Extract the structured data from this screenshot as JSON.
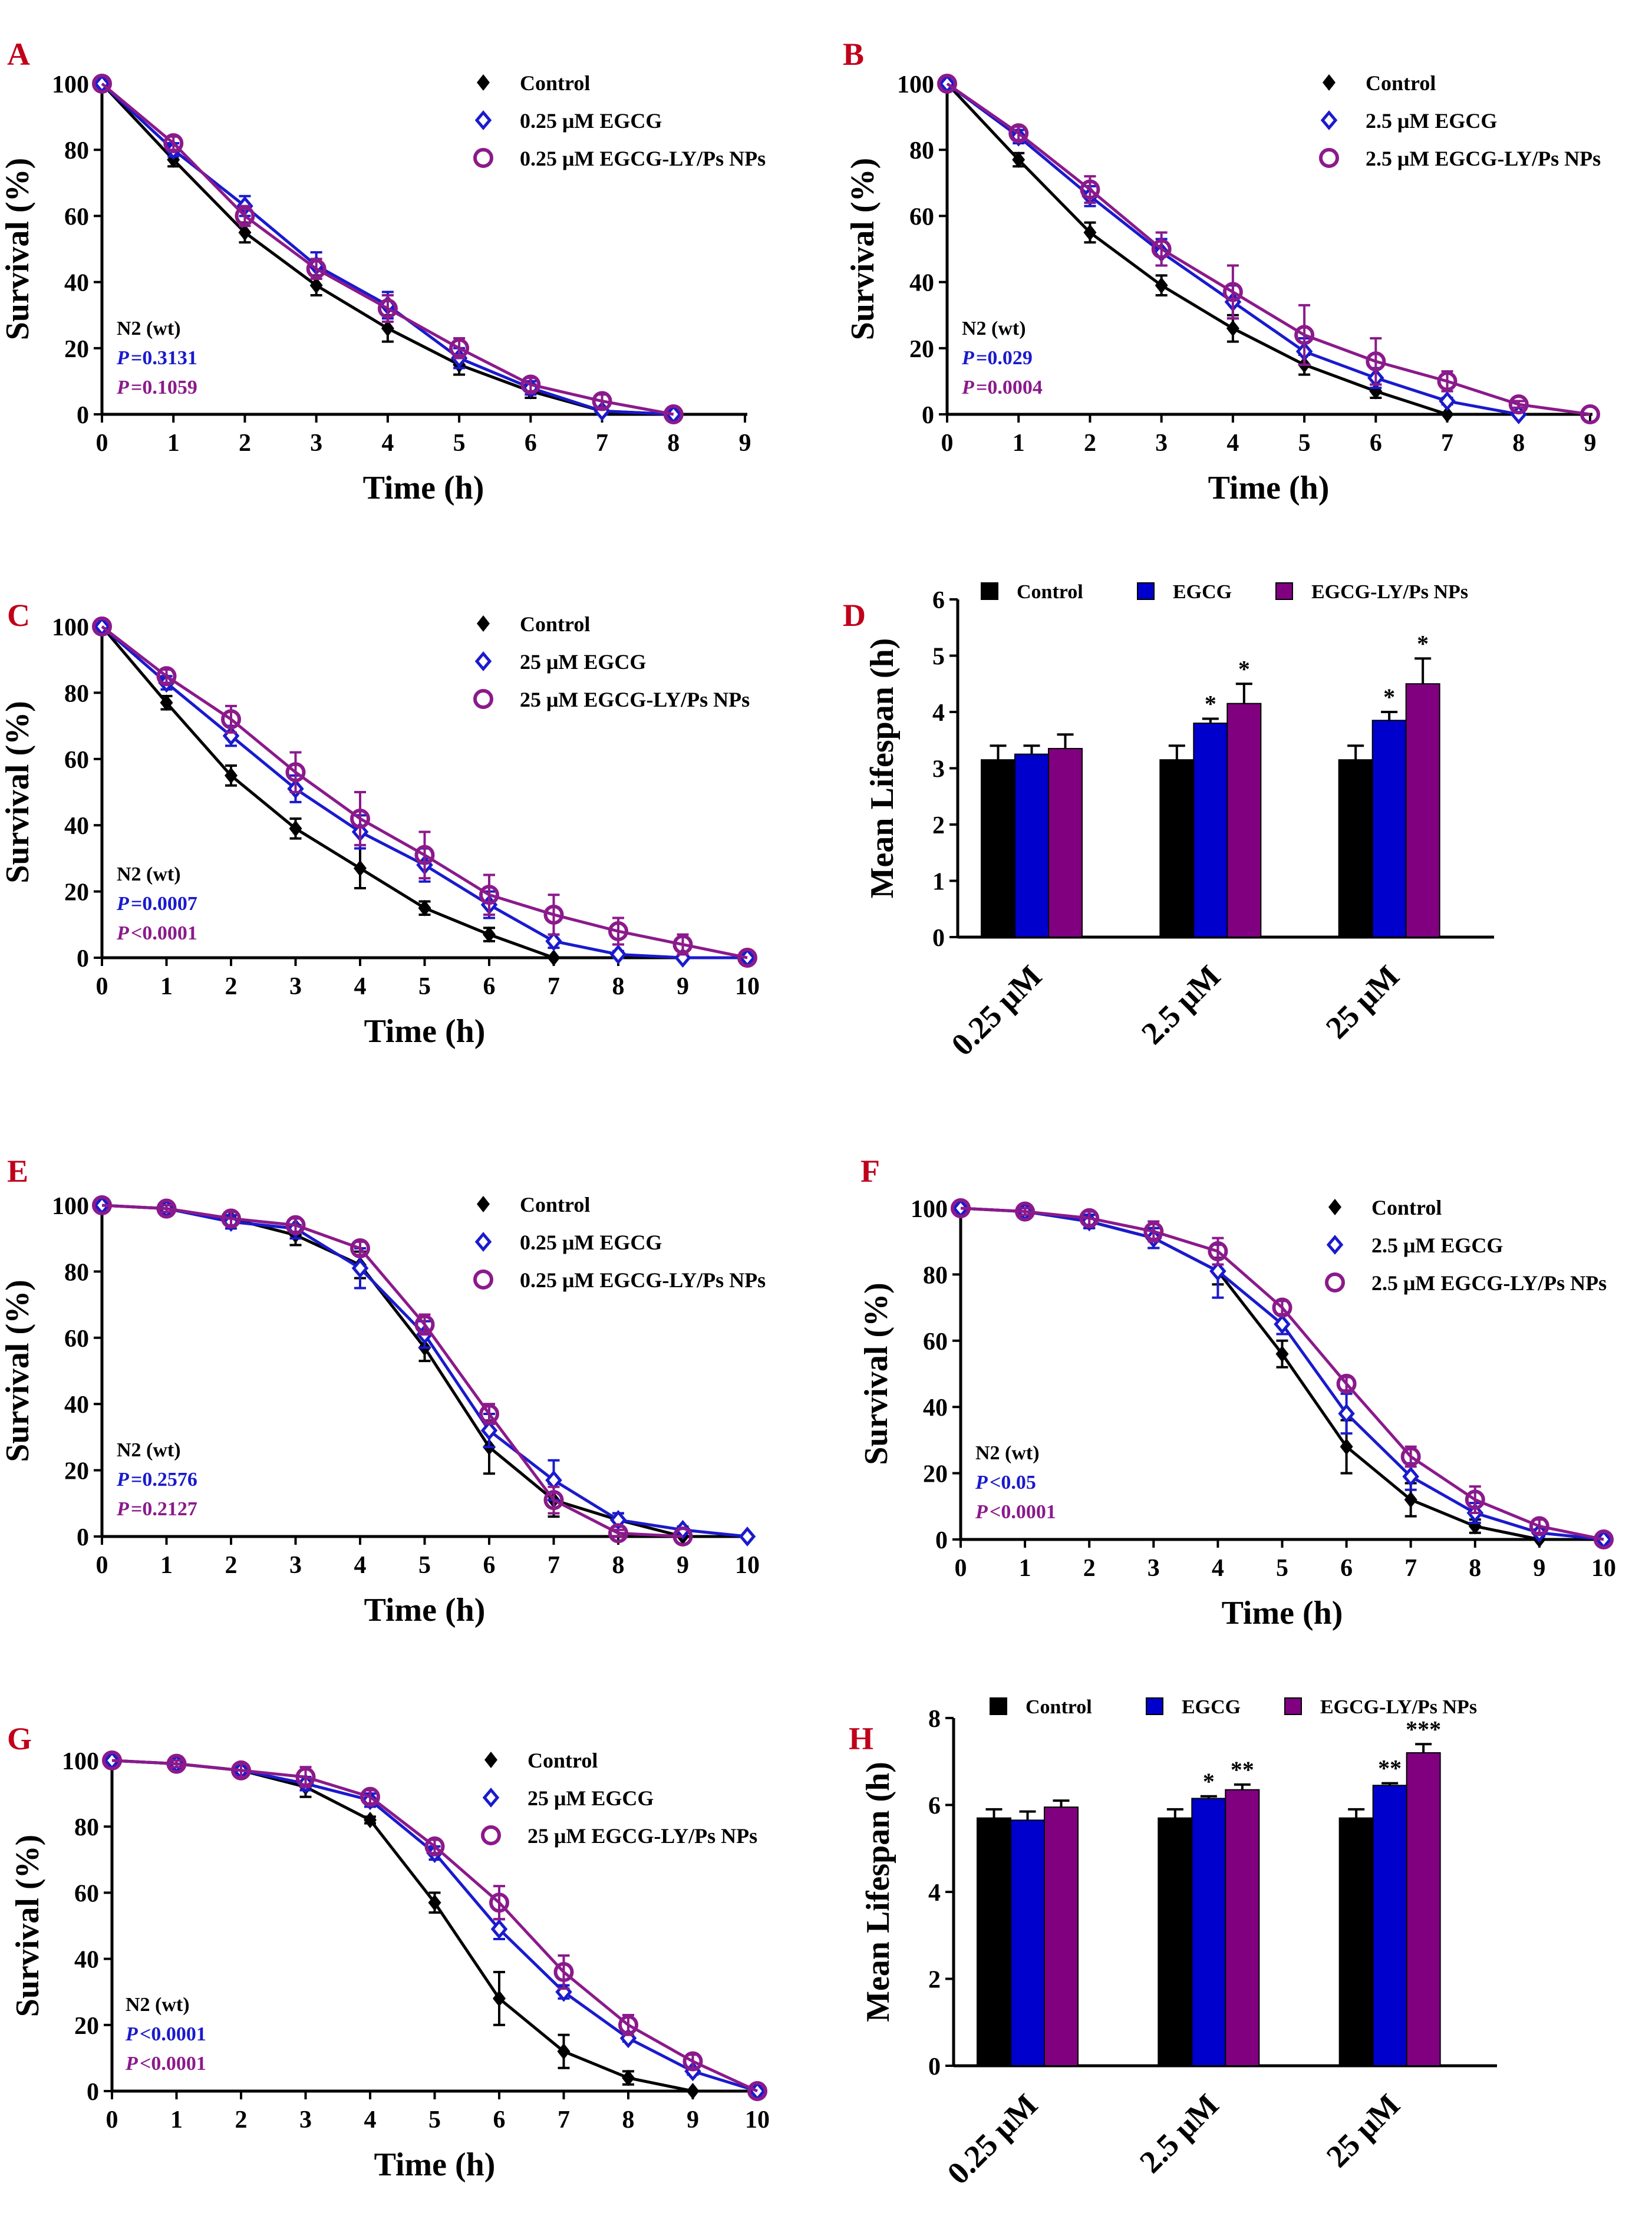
{
  "colors": {
    "control": "#000000",
    "egcg": "#1a1acd",
    "nps": "#8b1a8b",
    "nps_bar": "#800080",
    "egcg_bar": "#0000cc",
    "panel_label": "#c0001a"
  },
  "chart_data": [
    {
      "id": "A",
      "type": "line",
      "panel_label": "A",
      "xlabel": "Time (h)",
      "ylabel": "Survival (%)",
      "xlim": [
        0,
        9
      ],
      "ylim": [
        0,
        100
      ],
      "xticks": [
        "0",
        "1",
        "2",
        "3",
        "4",
        "5",
        "6",
        "7",
        "8",
        "9"
      ],
      "yticks": [
        "0",
        "20",
        "40",
        "60",
        "80",
        "100"
      ],
      "strain": "N2 (wt)",
      "p_values": [
        {
          "prefix": "P",
          "text": "=0.3131",
          "color_key": "egcg"
        },
        {
          "prefix": "P",
          "text": "=0.1059",
          "color_key": "nps"
        }
      ],
      "series": [
        {
          "name": "Control",
          "marker": "diamond-filled",
          "color_key": "control",
          "x": [
            0,
            1,
            2,
            3,
            4,
            5,
            6,
            7,
            8
          ],
          "y": [
            100,
            77,
            55,
            39,
            26,
            15,
            7,
            1,
            0
          ],
          "err": [
            0,
            2,
            3,
            3,
            4,
            3,
            2,
            1,
            0
          ]
        },
        {
          "name": "0.25 μM EGCG",
          "marker": "diamond-open",
          "color_key": "egcg",
          "x": [
            0,
            1,
            2,
            3,
            4,
            5,
            6,
            7,
            8
          ],
          "y": [
            100,
            80,
            63,
            45,
            33,
            17,
            8,
            1,
            0
          ],
          "err": [
            0,
            2,
            3,
            4,
            4,
            3,
            2,
            1,
            0
          ]
        },
        {
          "name": "0.25 μM EGCG-LY/Ps NPs",
          "marker": "circle-open",
          "color_key": "nps",
          "x": [
            0,
            1,
            2,
            3,
            4,
            5,
            6,
            7,
            8
          ],
          "y": [
            100,
            82,
            60,
            44,
            32,
            20,
            9,
            4,
            0
          ],
          "err": [
            0,
            2,
            3,
            3,
            4,
            3,
            2,
            2,
            0
          ]
        }
      ]
    },
    {
      "id": "B",
      "type": "line",
      "panel_label": "B",
      "xlabel": "Time (h)",
      "ylabel": "Survival (%)",
      "xlim": [
        0,
        9
      ],
      "ylim": [
        0,
        100
      ],
      "xticks": [
        "0",
        "1",
        "2",
        "3",
        "4",
        "5",
        "6",
        "7",
        "8",
        "9"
      ],
      "yticks": [
        "0",
        "20",
        "40",
        "60",
        "80",
        "100"
      ],
      "strain": "N2 (wt)",
      "p_values": [
        {
          "prefix": "P",
          "text": "=0.029",
          "color_key": "egcg"
        },
        {
          "prefix": "P",
          "text": "=0.0004",
          "color_key": "nps"
        }
      ],
      "series": [
        {
          "name": "Control",
          "marker": "diamond-filled",
          "color_key": "control",
          "x": [
            0,
            1,
            2,
            3,
            4,
            5,
            6,
            7,
            8
          ],
          "y": [
            100,
            77,
            55,
            39,
            26,
            15,
            7,
            0,
            0
          ],
          "err": [
            0,
            2,
            3,
            3,
            4,
            3,
            2,
            0,
            0
          ]
        },
        {
          "name": "2.5 μM EGCG",
          "marker": "diamond-open",
          "color_key": "egcg",
          "x": [
            0,
            1,
            2,
            3,
            4,
            5,
            6,
            7,
            8
          ],
          "y": [
            100,
            84,
            66,
            49,
            34,
            19,
            11,
            4,
            0
          ],
          "err": [
            0,
            2,
            3,
            4,
            5,
            4,
            3,
            1,
            0
          ]
        },
        {
          "name": "2.5 μM EGCG-LY/Ps NPs",
          "marker": "circle-open",
          "color_key": "nps",
          "x": [
            0,
            1,
            2,
            3,
            4,
            5,
            6,
            7,
            8,
            9
          ],
          "y": [
            100,
            85,
            68,
            50,
            37,
            24,
            16,
            10,
            3,
            0
          ],
          "err": [
            0,
            2,
            4,
            5,
            8,
            9,
            7,
            3,
            1,
            0
          ]
        }
      ]
    },
    {
      "id": "C",
      "type": "line",
      "panel_label": "C",
      "xlabel": "Time (h)",
      "ylabel": "Survival (%)",
      "xlim": [
        0,
        10
      ],
      "ylim": [
        0,
        100
      ],
      "xticks": [
        "0",
        "1",
        "2",
        "3",
        "4",
        "5",
        "6",
        "7",
        "8",
        "9",
        "10"
      ],
      "yticks": [
        "0",
        "20",
        "40",
        "60",
        "80",
        "100"
      ],
      "strain": "N2 (wt)",
      "p_values": [
        {
          "prefix": "P",
          "text": "=0.0007",
          "color_key": "egcg"
        },
        {
          "prefix": "P",
          "text": "<0.0001",
          "color_key": "nps"
        }
      ],
      "series": [
        {
          "name": "Control",
          "marker": "diamond-filled",
          "color_key": "control",
          "x": [
            0,
            1,
            2,
            3,
            4,
            5,
            6,
            7
          ],
          "y": [
            100,
            77,
            55,
            39,
            27,
            15,
            7,
            0
          ],
          "err": [
            0,
            2,
            3,
            3,
            6,
            2,
            2,
            0
          ]
        },
        {
          "name": "25 μM EGCG",
          "marker": "diamond-open",
          "color_key": "egcg",
          "x": [
            0,
            1,
            2,
            3,
            4,
            5,
            6,
            7,
            8,
            9,
            10
          ],
          "y": [
            100,
            83,
            67,
            51,
            38,
            28,
            16,
            5,
            1,
            0,
            0
          ],
          "err": [
            0,
            2,
            3,
            4,
            5,
            5,
            4,
            2,
            1,
            0,
            0
          ]
        },
        {
          "name": "25 μM EGCG-LY/Ps NPs",
          "marker": "circle-open",
          "color_key": "nps",
          "x": [
            0,
            1,
            2,
            3,
            4,
            5,
            6,
            7,
            8,
            9,
            10
          ],
          "y": [
            100,
            85,
            72,
            56,
            42,
            31,
            19,
            13,
            8,
            4,
            0
          ],
          "err": [
            0,
            2,
            4,
            6,
            8,
            7,
            6,
            6,
            4,
            3,
            0
          ]
        }
      ]
    },
    {
      "id": "D",
      "type": "bar",
      "panel_label": "D",
      "ylabel": "Mean Lifespan (h)",
      "ylim": [
        0,
        6
      ],
      "yticks": [
        "0",
        "1",
        "2",
        "3",
        "4",
        "5",
        "6"
      ],
      "categories": [
        "0.25 μM",
        "2.5 μM",
        "25 μM"
      ],
      "series": [
        {
          "name": "Control",
          "color_key": "control",
          "values": [
            3.15,
            3.15,
            3.15
          ],
          "err": [
            0.25,
            0.25,
            0.25
          ],
          "sig": [
            "",
            "",
            ""
          ]
        },
        {
          "name": "EGCG",
          "color_key": "egcg_bar",
          "values": [
            3.25,
            3.8,
            3.85
          ],
          "err": [
            0.15,
            0.08,
            0.15
          ],
          "sig": [
            "",
            "*",
            "*"
          ]
        },
        {
          "name": "EGCG-LY/Ps NPs",
          "color_key": "nps_bar",
          "values": [
            3.35,
            4.15,
            4.5
          ],
          "err": [
            0.25,
            0.35,
            0.45
          ],
          "sig": [
            "",
            "*",
            "*"
          ]
        }
      ]
    },
    {
      "id": "E",
      "type": "line",
      "panel_label": "E",
      "xlabel": "Time (h)",
      "ylabel": "Survival (%)",
      "xlim": [
        0,
        10
      ],
      "ylim": [
        0,
        100
      ],
      "xticks": [
        "0",
        "1",
        "2",
        "3",
        "4",
        "5",
        "6",
        "7",
        "8",
        "9",
        "10"
      ],
      "yticks": [
        "0",
        "20",
        "40",
        "60",
        "80",
        "100"
      ],
      "strain": "N2 (wt)",
      "p_values": [
        {
          "prefix": "P",
          "text": "=0.2576",
          "color_key": "egcg"
        },
        {
          "prefix": "P",
          "text": "=0.2127",
          "color_key": "nps"
        }
      ],
      "series": [
        {
          "name": "Control",
          "marker": "diamond-filled",
          "color_key": "control",
          "x": [
            0,
            1,
            2,
            3,
            4,
            5,
            6,
            7,
            8,
            9
          ],
          "y": [
            100,
            99,
            96,
            91,
            82,
            57,
            27,
            11,
            5,
            0
          ],
          "err": [
            0,
            1,
            2,
            3,
            4,
            4,
            8,
            5,
            2,
            0
          ]
        },
        {
          "name": "0.25 μM EGCG",
          "marker": "diamond-open",
          "color_key": "egcg",
          "x": [
            0,
            1,
            2,
            3,
            4,
            5,
            6,
            7,
            8,
            9,
            10
          ],
          "y": [
            100,
            99,
            95,
            93,
            81,
            61,
            32,
            17,
            5,
            2,
            0
          ],
          "err": [
            0,
            1,
            2,
            3,
            6,
            4,
            5,
            6,
            2,
            1,
            0
          ]
        },
        {
          "name": "0.25 μM EGCG-LY/Ps NPs",
          "marker": "circle-open",
          "color_key": "nps",
          "x": [
            0,
            1,
            2,
            3,
            4,
            5,
            6,
            7,
            8,
            9
          ],
          "y": [
            100,
            99,
            96,
            94,
            87,
            64,
            37,
            11,
            1,
            0
          ],
          "err": [
            0,
            1,
            2,
            2,
            2,
            3,
            3,
            4,
            1,
            0
          ]
        }
      ]
    },
    {
      "id": "F",
      "type": "line",
      "panel_label": "F",
      "xlabel": "Time (h)",
      "ylabel": "Survival  (%)",
      "xlim": [
        0,
        10
      ],
      "ylim": [
        0,
        100
      ],
      "xticks": [
        "0",
        "1",
        "2",
        "3",
        "4",
        "5",
        "6",
        "7",
        "8",
        "9",
        "10"
      ],
      "yticks": [
        "0",
        "20",
        "40",
        "60",
        "80",
        "100"
      ],
      "strain": "N2 (wt)",
      "p_values": [
        {
          "prefix": "P",
          "text": "<0.05",
          "color_key": "egcg"
        },
        {
          "prefix": "P",
          "text": "<0.0001",
          "color_key": "nps"
        }
      ],
      "series": [
        {
          "name": "Control",
          "marker": "diamond-filled",
          "color_key": "control",
          "x": [
            0,
            1,
            2,
            3,
            4,
            5,
            6,
            7,
            8,
            9
          ],
          "y": [
            100,
            99,
            96,
            91,
            81,
            56,
            28,
            12,
            4,
            0
          ],
          "err": [
            0,
            1,
            2,
            3,
            4,
            4,
            8,
            5,
            2,
            0
          ]
        },
        {
          "name": "2.5 μM EGCG",
          "marker": "diamond-open",
          "color_key": "egcg",
          "x": [
            0,
            1,
            2,
            3,
            4,
            5,
            6,
            7,
            8,
            9,
            10
          ],
          "y": [
            100,
            99,
            96,
            91,
            81,
            65,
            38,
            19,
            8,
            2,
            0
          ],
          "err": [
            0,
            1,
            2,
            3,
            8,
            3,
            6,
            4,
            3,
            1,
            0
          ]
        },
        {
          "name": "2.5 μM EGCG-LY/Ps NPs",
          "marker": "circle-open",
          "color_key": "nps",
          "x": [
            0,
            1,
            2,
            3,
            4,
            5,
            6,
            7,
            8,
            9,
            10
          ],
          "y": [
            100,
            99,
            97,
            93,
            87,
            70,
            47,
            25,
            12,
            4,
            0
          ],
          "err": [
            0,
            1,
            2,
            3,
            4,
            2,
            2,
            3,
            4,
            2,
            0
          ]
        }
      ]
    },
    {
      "id": "G",
      "type": "line",
      "panel_label": "G",
      "xlabel": "Time (h)",
      "ylabel": "Survival (%)",
      "xlim": [
        0,
        10
      ],
      "ylim": [
        0,
        100
      ],
      "xticks": [
        "0",
        "1",
        "2",
        "3",
        "4",
        "5",
        "6",
        "7",
        "8",
        "9",
        "10"
      ],
      "yticks": [
        "0",
        "20",
        "40",
        "60",
        "80",
        "100"
      ],
      "strain": "N2 (wt)",
      "p_values": [
        {
          "prefix": "P",
          "text": "<0.0001",
          "color_key": "egcg"
        },
        {
          "prefix": "P",
          "text": "<0.0001",
          "color_key": "nps"
        }
      ],
      "series": [
        {
          "name": "Control",
          "marker": "diamond-filled",
          "color_key": "control",
          "x": [
            0,
            1,
            2,
            3,
            4,
            5,
            6,
            7,
            8,
            9
          ],
          "y": [
            100,
            99,
            97,
            92,
            82,
            57,
            28,
            12,
            4,
            0
          ],
          "err": [
            0,
            1,
            2,
            3,
            1,
            3,
            8,
            5,
            2,
            0
          ]
        },
        {
          "name": "25 μM EGCG",
          "marker": "diamond-open",
          "color_key": "egcg",
          "x": [
            0,
            1,
            2,
            3,
            4,
            5,
            6,
            7,
            8,
            9,
            10
          ],
          "y": [
            100,
            99,
            97,
            93,
            88,
            72,
            49,
            30,
            16,
            6,
            0
          ],
          "err": [
            0,
            1,
            1,
            2,
            2,
            2,
            3,
            2,
            1,
            1,
            0
          ]
        },
        {
          "name": "25 μM EGCG-LY/Ps NPs",
          "marker": "circle-open",
          "color_key": "nps",
          "x": [
            0,
            1,
            2,
            3,
            4,
            5,
            6,
            7,
            8,
            9,
            10
          ],
          "y": [
            100,
            99,
            97,
            95,
            89,
            74,
            57,
            36,
            20,
            9,
            0
          ],
          "err": [
            0,
            1,
            2,
            3,
            2,
            2,
            5,
            5,
            3,
            2,
            0
          ]
        }
      ]
    },
    {
      "id": "H",
      "type": "bar",
      "panel_label": "H",
      "ylabel": "Mean Lifespan (h)",
      "ylim": [
        0,
        8
      ],
      "yticks": [
        "0",
        "2",
        "4",
        "6",
        "8"
      ],
      "categories": [
        "0.25 μM",
        "2.5 μM",
        "25 μM"
      ],
      "series": [
        {
          "name": "Control",
          "color_key": "control",
          "values": [
            5.7,
            5.7,
            5.7
          ],
          "err": [
            0.2,
            0.2,
            0.2
          ],
          "sig": [
            "",
            "",
            ""
          ]
        },
        {
          "name": "EGCG",
          "color_key": "egcg_bar",
          "values": [
            5.65,
            6.15,
            6.45
          ],
          "err": [
            0.2,
            0.05,
            0.05
          ],
          "sig": [
            "",
            "*",
            "**"
          ]
        },
        {
          "name": "EGCG-LY/Ps NPs",
          "color_key": "nps_bar",
          "values": [
            5.95,
            6.35,
            7.2
          ],
          "err": [
            0.15,
            0.12,
            0.2
          ],
          "sig": [
            "",
            "**",
            "***"
          ]
        }
      ]
    }
  ]
}
